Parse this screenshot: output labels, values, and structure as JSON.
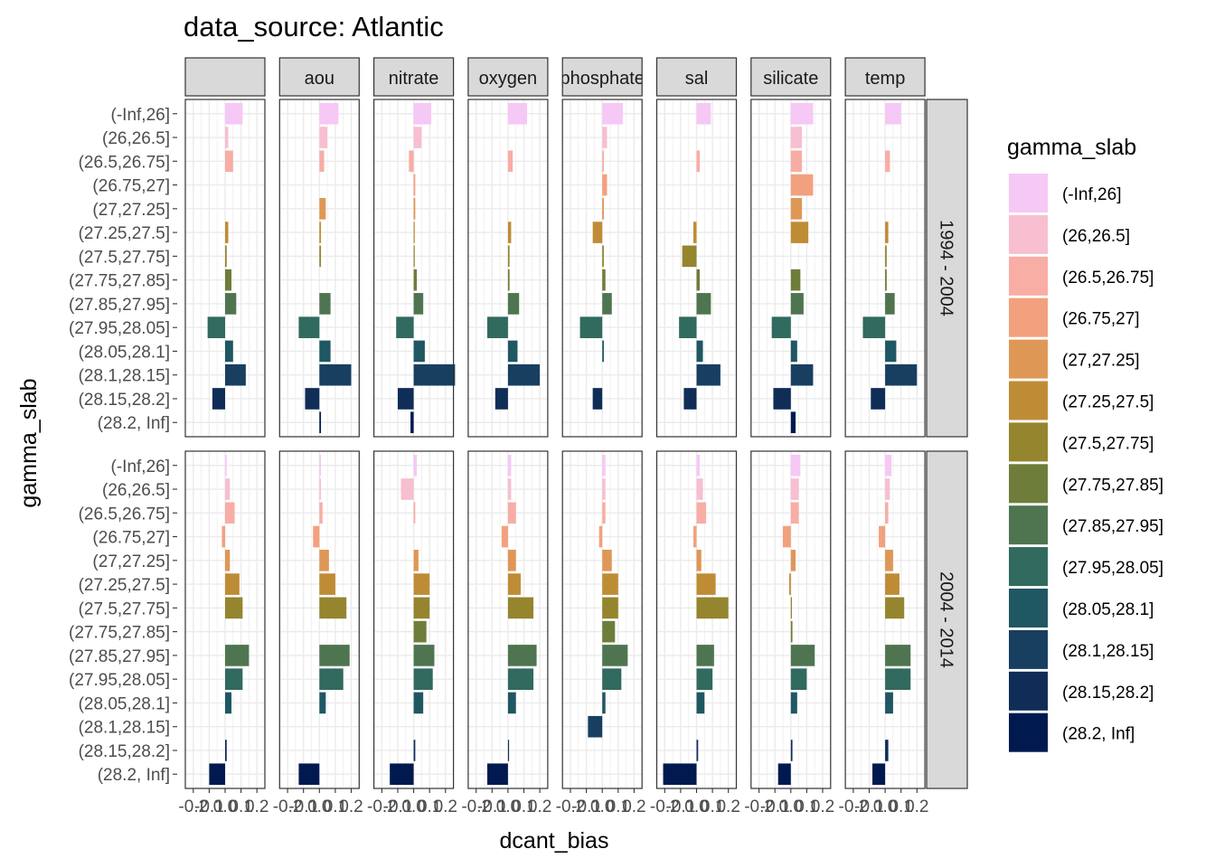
{
  "chart_data": {
    "type": "bar",
    "title": "data_source: Atlantic",
    "xlabel": "dcant_bias",
    "ylabel": "gamma_slab",
    "xlim": [
      -0.25,
      0.25
    ],
    "xticks": [
      -0.2,
      -0.1,
      0.0,
      0.1,
      0.2
    ],
    "xtick_labels": [
      "-0.2",
      "-0.1",
      "0.0",
      "0.1",
      "0.2"
    ],
    "grid": true,
    "categories": [
      "(-Inf,26]",
      "(26,26.5]",
      "(26.5,26.75]",
      "(26.75,27]",
      "(27,27.25]",
      "(27.25,27.5]",
      "(27.5,27.75]",
      "(27.75,27.85]",
      "(27.85,27.95]",
      "(27.95,28.05]",
      "(28.05,28.1]",
      "(28.1,28.15]",
      "(28.15,28.2]",
      "(28.2, Inf]"
    ],
    "colors": [
      "#F6C8F5",
      "#F7BFCF",
      "#F8ADA5",
      "#F3A07E",
      "#DF9756",
      "#BF8C36",
      "#94852E",
      "#6F7D3B",
      "#4E7550",
      "#316A5E",
      "#1F5763",
      "#183F60",
      "#102D58",
      "#001A4F"
    ],
    "columns": [
      "",
      "aou",
      "nitrate",
      "oxygen",
      "phosphate",
      "sal",
      "silicate",
      "temp"
    ],
    "rows": [
      "1994 - 2004",
      "2004 - 2014"
    ],
    "legend": {
      "title": "gamma_slab",
      "position": "right",
      "labels": [
        "(-Inf,26]",
        "(26,26.5]",
        "(26.5,26.75]",
        "(26.75,27]",
        "(27,27.25]",
        "(27.25,27.5]",
        "(27.5,27.75]",
        "(27.75,27.85]",
        "(27.85,27.95]",
        "(27.95,28.05]",
        "(28.05,28.1]",
        "(28.1,28.15]",
        "(28.15,28.2]",
        "(28.2, Inf]"
      ]
    },
    "panels": [
      [
        [
          0.11,
          0.02,
          0.05,
          null,
          null,
          0.02,
          0.01,
          0.04,
          0.07,
          -0.11,
          0.05,
          0.13,
          -0.08,
          null
        ],
        [
          0.12,
          0.05,
          0.03,
          null,
          0.04,
          0.01,
          0.01,
          null,
          0.07,
          -0.13,
          0.07,
          0.2,
          -0.09,
          0.01
        ],
        [
          0.11,
          0.05,
          -0.03,
          0.01,
          0.01,
          0.0,
          0.0,
          0.02,
          0.06,
          -0.11,
          0.07,
          0.26,
          -0.1,
          -0.02
        ],
        [
          0.12,
          null,
          0.03,
          null,
          null,
          0.02,
          0.01,
          0.01,
          0.07,
          -0.13,
          0.06,
          0.2,
          -0.08,
          null
        ],
        [
          0.13,
          0.03,
          0.01,
          0.03,
          0.01,
          -0.06,
          0.01,
          0.02,
          0.06,
          -0.14,
          0.01,
          null,
          -0.06,
          null
        ],
        [
          0.09,
          null,
          0.02,
          null,
          null,
          -0.02,
          -0.09,
          0.02,
          0.09,
          -0.11,
          0.04,
          0.15,
          -0.08,
          null
        ],
        [
          0.14,
          0.07,
          0.07,
          0.14,
          0.07,
          0.11,
          null,
          0.06,
          0.08,
          -0.12,
          0.04,
          0.14,
          -0.11,
          0.03
        ],
        [
          0.1,
          null,
          0.03,
          null,
          null,
          0.02,
          0.01,
          0.01,
          0.06,
          -0.14,
          0.07,
          0.2,
          -0.09,
          null
        ]
      ],
      [
        [
          0.01,
          0.03,
          0.06,
          -0.02,
          0.03,
          0.09,
          0.11,
          null,
          0.15,
          0.11,
          0.04,
          null,
          0.01,
          -0.1
        ],
        [
          0.01,
          0.01,
          0.02,
          -0.04,
          0.06,
          0.1,
          0.17,
          null,
          0.19,
          0.15,
          0.04,
          null,
          null,
          -0.13
        ],
        [
          0.02,
          -0.08,
          0.01,
          null,
          0.03,
          0.1,
          0.1,
          0.08,
          0.13,
          0.12,
          0.06,
          null,
          0.01,
          -0.15
        ],
        [
          0.02,
          0.02,
          0.05,
          -0.04,
          0.05,
          0.08,
          0.16,
          null,
          0.18,
          0.16,
          0.05,
          null,
          0.0,
          -0.13
        ],
        [
          0.02,
          0.02,
          0.02,
          -0.02,
          0.06,
          0.1,
          0.1,
          0.08,
          0.16,
          0.12,
          0.02,
          -0.09,
          null,
          null
        ],
        [
          0.02,
          0.04,
          0.06,
          -0.02,
          0.03,
          0.12,
          0.2,
          null,
          0.11,
          0.1,
          0.05,
          null,
          0.01,
          -0.21
        ],
        [
          0.06,
          0.05,
          0.05,
          -0.05,
          0.03,
          -0.01,
          0.0,
          0.01,
          0.15,
          0.1,
          0.04,
          null,
          0.01,
          -0.08
        ],
        [
          0.04,
          0.03,
          0.02,
          -0.04,
          0.05,
          0.09,
          0.12,
          null,
          0.16,
          0.16,
          0.05,
          null,
          0.02,
          -0.08
        ]
      ]
    ]
  }
}
